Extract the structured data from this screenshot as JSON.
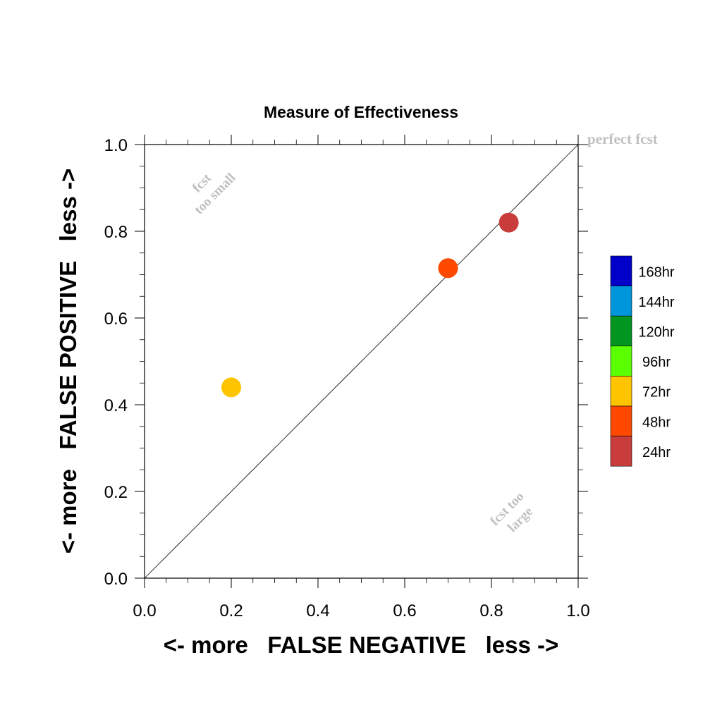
{
  "chart_data": {
    "type": "scatter",
    "title": "Measure of Effectiveness",
    "xlabel": "<- more   FALSE NEGATIVE   less ->",
    "ylabel": "<- more   FALSE POSITIVE   less ->",
    "xlim": [
      0,
      1
    ],
    "ylim": [
      0,
      1
    ],
    "x_ticks": [
      "0.0",
      "0.2",
      "0.4",
      "0.6",
      "0.8",
      "1.0"
    ],
    "y_ticks": [
      "0.0",
      "0.2",
      "0.4",
      "0.6",
      "0.8",
      "1.0"
    ],
    "grid": false,
    "diagonal_line": true,
    "annotations": {
      "perfect": "perfect fcst",
      "too_small": [
        "fcst",
        "too small"
      ],
      "too_large": [
        "fcst too",
        "large"
      ]
    },
    "legend": {
      "position": "right",
      "items": [
        {
          "label": "168hr",
          "color": "#0000c8"
        },
        {
          "label": "144hr",
          "color": "#0096dc"
        },
        {
          "label": "120hr",
          "color": "#009620"
        },
        {
          "label": "96hr",
          "color": "#5aff00"
        },
        {
          "label": "72hr",
          "color": "#ffc400"
        },
        {
          "label": "48hr",
          "color": "#ff4800"
        },
        {
          "label": "24hr",
          "color": "#c83c3c"
        }
      ]
    },
    "points": [
      {
        "lead": "24hr",
        "x": 0.84,
        "y": 0.82,
        "color": "#c83c3c"
      },
      {
        "lead": "48hr",
        "x": 0.7,
        "y": 0.715,
        "color": "#ff4800"
      },
      {
        "lead": "72hr",
        "x": 0.2,
        "y": 0.44,
        "color": "#ffc400"
      }
    ]
  }
}
